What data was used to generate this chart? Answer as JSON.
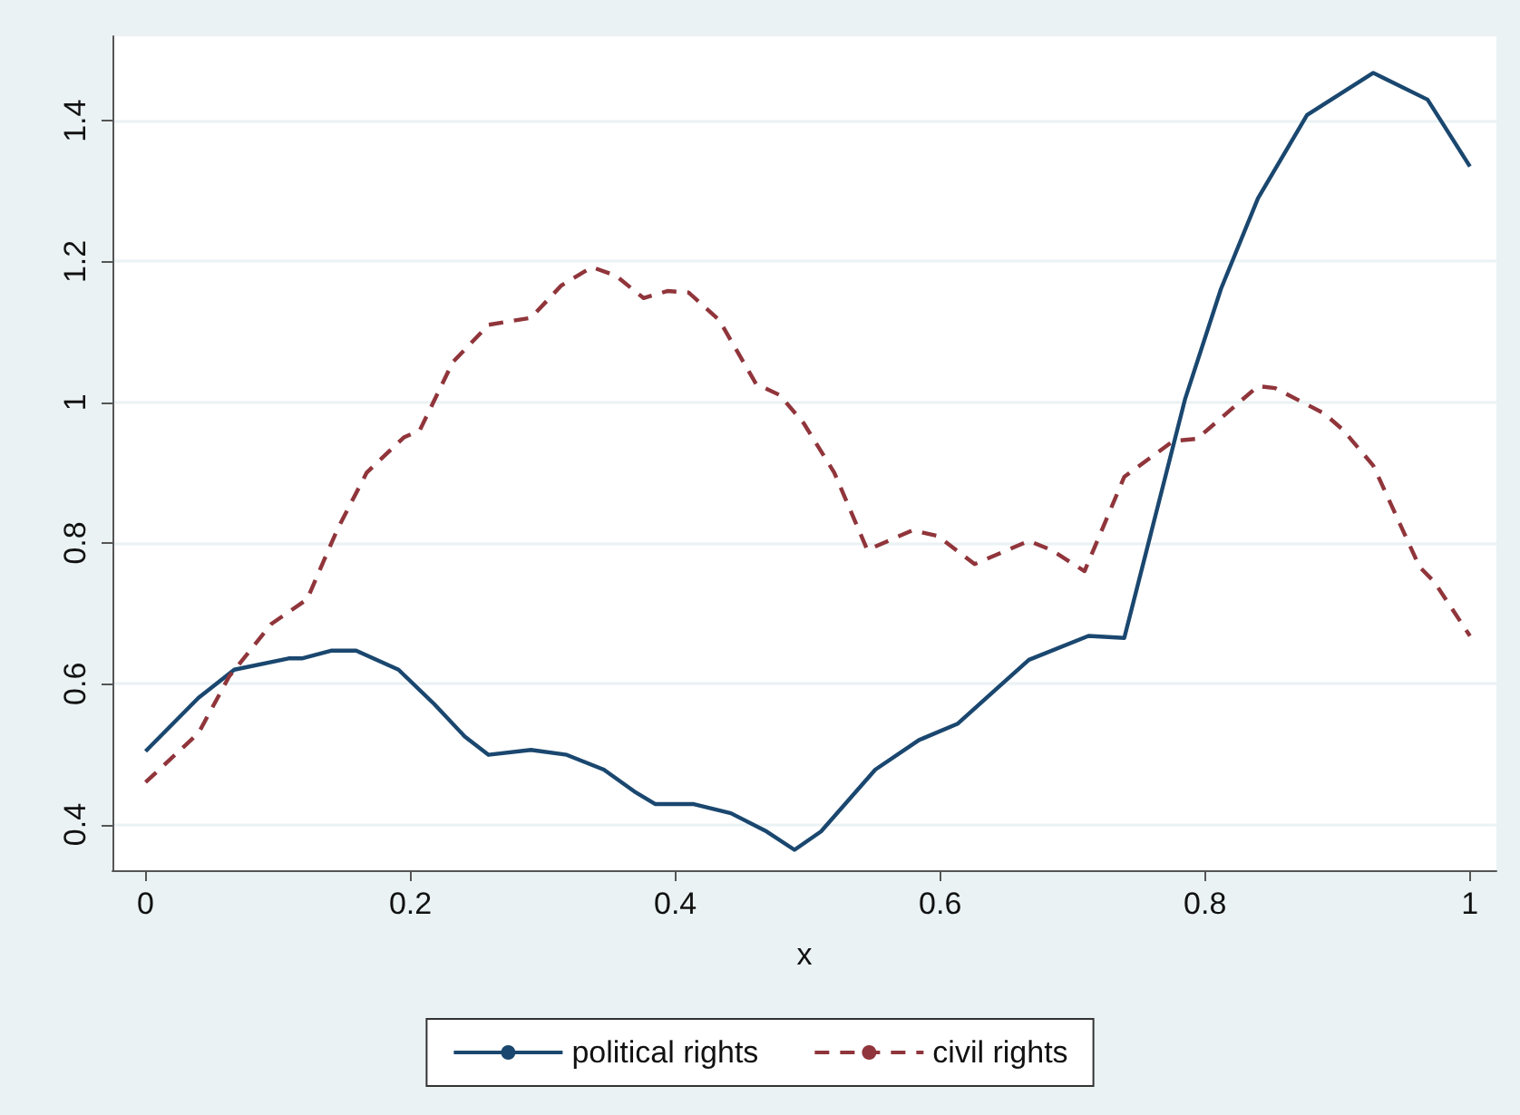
{
  "chart_data": {
    "type": "line",
    "xlabel": "x",
    "xlim": [
      -0.025,
      1.02
    ],
    "xticks": [
      0,
      0.2,
      0.4,
      0.6,
      0.8,
      1
    ],
    "ylim": [
      0.335,
      1.52
    ],
    "yticks": [
      0.4,
      0.6,
      0.8,
      1,
      1.2,
      1.4
    ],
    "grid": "y",
    "legend": "bottom",
    "marker": "none",
    "series": [
      {
        "name": "political rights",
        "color": "#1a476f",
        "line_style": "solid",
        "x": [
          0,
          0.04,
          0.067,
          0.108,
          0.118,
          0.14,
          0.159,
          0.191,
          0.218,
          0.241,
          0.259,
          0.291,
          0.318,
          0.346,
          0.369,
          0.385,
          0.414,
          0.442,
          0.469,
          0.49,
          0.51,
          0.551,
          0.584,
          0.613,
          0.667,
          0.712,
          0.739,
          0.785,
          0.812,
          0.84,
          0.877,
          0.927,
          0.968,
          1
        ],
        "values": [
          0.504,
          0.58,
          0.62,
          0.636,
          0.636,
          0.647,
          0.647,
          0.62,
          0.571,
          0.525,
          0.499,
          0.506,
          0.499,
          0.478,
          0.447,
          0.429,
          0.429,
          0.416,
          0.39,
          0.364,
          0.39,
          0.478,
          0.52,
          0.543,
          0.634,
          0.668,
          0.665,
          1.005,
          1.161,
          1.29,
          1.408,
          1.468,
          1.43,
          1.335
        ]
      },
      {
        "name": "civil rights",
        "color": "#90353b",
        "line_style": "dashed",
        "x": [
          0,
          0.04,
          0.063,
          0.095,
          0.122,
          0.145,
          0.167,
          0.195,
          0.207,
          0.232,
          0.259,
          0.291,
          0.314,
          0.337,
          0.355,
          0.376,
          0.394,
          0.41,
          0.433,
          0.461,
          0.479,
          0.497,
          0.52,
          0.545,
          0.579,
          0.598,
          0.626,
          0.667,
          0.684,
          0.709,
          0.739,
          0.776,
          0.794,
          0.84,
          0.853,
          0.89,
          0.904,
          0.927,
          0.962,
          0.973,
          1
        ],
        "values": [
          0.46,
          0.53,
          0.61,
          0.685,
          0.72,
          0.82,
          0.9,
          0.95,
          0.96,
          1.057,
          1.11,
          1.12,
          1.166,
          1.192,
          1.18,
          1.148,
          1.158,
          1.156,
          1.117,
          1.026,
          1.01,
          0.97,
          0.9,
          0.79,
          0.818,
          0.81,
          0.77,
          0.803,
          0.79,
          0.76,
          0.894,
          0.945,
          0.948,
          1.023,
          1.02,
          0.984,
          0.961,
          0.91,
          0.766,
          0.745,
          0.668
        ]
      }
    ]
  }
}
